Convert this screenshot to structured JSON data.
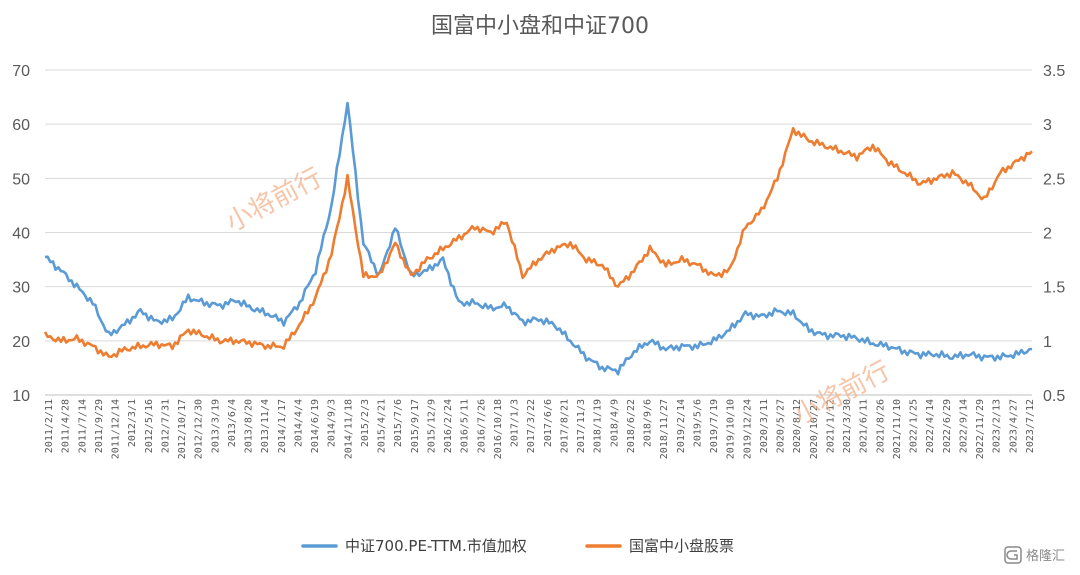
{
  "chart_data": {
    "type": "line",
    "title": "国富中小盘和中证700",
    "xlabel": "",
    "ylabel": "",
    "ylim_left": [
      10,
      70
    ],
    "yticks_left": [
      "10",
      "20",
      "30",
      "40",
      "50",
      "60",
      "70"
    ],
    "ylim_right": [
      0.5,
      3.5
    ],
    "yticks_right": [
      "0.5",
      "1",
      "1.5",
      "2",
      "2.5",
      "3",
      "3.5"
    ],
    "grid": true,
    "legend_position": "bottom",
    "x_tick_labels": [
      "2011/2/11",
      "2011/4/28",
      "2011/7/14",
      "2011/9/29",
      "2011/12/14",
      "2012/3/1",
      "2012/5/16",
      "2012/7/31",
      "2012/10/17",
      "2012/12/30",
      "2013/3/19",
      "2013/6/4",
      "2013/8/20",
      "2013/11/4",
      "2014/1/17",
      "2014/4/4",
      "2014/6/19",
      "2014/9/3",
      "2014/11/18",
      "2015/2/3",
      "2015/4/21",
      "2015/7/6",
      "2015/9/17",
      "2015/12/9",
      "2016/2/24",
      "2016/5/11",
      "2016/7/26",
      "2016/10/18",
      "2017/1/3",
      "2017/3/22",
      "2017/6/6",
      "2017/8/21",
      "2017/11/3",
      "2018/1/19",
      "2018/4/9",
      "2018/6/22",
      "2018/9/6",
      "2018/11/27",
      "2019/2/14",
      "2019/5/6",
      "2019/7/19",
      "2019/10/10",
      "2019/12/24",
      "2020/3/11",
      "2020/5/27",
      "2020/8/12",
      "2020/10/27",
      "2021/1/12",
      "2021/3/30",
      "2021/6/11",
      "2021/8/26",
      "2021/11/10",
      "2022/1/25",
      "2022/4/14",
      "2022/6/29",
      "2022/9/14",
      "2022/11/29",
      "2023/2/13",
      "2023/4/27",
      "2023/7/12"
    ],
    "x": [
      "2011-02",
      "2011-05",
      "2011-08",
      "2011-11",
      "2012-02",
      "2012-05",
      "2012-08",
      "2012-11",
      "2013-02",
      "2013-05",
      "2013-08",
      "2013-11",
      "2014-02",
      "2014-05",
      "2014-08",
      "2014-11",
      "2015-01",
      "2015-03",
      "2015-05",
      "2015-06",
      "2015-07",
      "2015-09",
      "2015-11",
      "2016-01",
      "2016-03",
      "2016-05",
      "2016-08",
      "2016-11",
      "2017-02",
      "2017-05",
      "2017-08",
      "2017-11",
      "2018-02",
      "2018-05",
      "2018-08",
      "2018-11",
      "2019-01",
      "2019-03",
      "2019-05",
      "2019-08",
      "2019-11",
      "2020-02",
      "2020-04",
      "2020-06",
      "2020-08",
      "2020-10",
      "2020-12",
      "2021-02",
      "2021-04",
      "2021-06",
      "2021-08",
      "2021-10",
      "2021-12",
      "2022-02",
      "2022-04",
      "2022-06",
      "2022-08",
      "2022-10",
      "2022-12",
      "2023-02",
      "2023-04",
      "2023-06",
      "2023-08"
    ],
    "series": [
      {
        "name": "中证700.PE-TTM.市值加权",
        "axis": "left",
        "color": "#5b9bd5",
        "values": [
          35.5,
          33.0,
          30.0,
          27.0,
          21.0,
          23.0,
          25.5,
          23.5,
          24.0,
          28.0,
          27.0,
          26.5,
          27.5,
          26.0,
          25.0,
          23.5,
          27.0,
          33.0,
          45.0,
          64.0,
          38.0,
          32.0,
          41.0,
          32.0,
          33.0,
          35.0,
          27.0,
          27.0,
          26.0,
          26.5,
          23.5,
          24.0,
          23.0,
          20.0,
          17.0,
          15.0,
          14.5,
          18.0,
          20.0,
          18.5,
          19.0,
          19.0,
          20.0,
          22.0,
          25.0,
          24.5,
          25.5,
          25.0,
          22.0,
          21.0,
          21.0,
          20.5,
          19.5,
          19.0,
          18.0,
          17.5,
          17.5,
          17.0,
          17.5,
          17.0,
          17.0,
          17.5,
          18.5
        ]
      },
      {
        "name": "国富中小盘股票",
        "axis": "right",
        "color": "#ed7d31",
        "values": [
          1.05,
          1.0,
          1.02,
          0.95,
          0.85,
          0.92,
          0.95,
          0.97,
          0.95,
          1.1,
          1.05,
          1.0,
          1.0,
          0.98,
          0.95,
          0.95,
          1.15,
          1.4,
          1.8,
          2.5,
          1.6,
          1.6,
          1.9,
          1.6,
          1.75,
          1.85,
          1.95,
          2.05,
          2.0,
          2.1,
          1.6,
          1.75,
          1.85,
          1.9,
          1.75,
          1.7,
          1.5,
          1.65,
          1.85,
          1.7,
          1.75,
          1.7,
          1.6,
          1.65,
          2.05,
          2.2,
          2.5,
          2.95,
          2.85,
          2.8,
          2.75,
          2.7,
          2.8,
          2.65,
          2.55,
          2.45,
          2.5,
          2.55,
          2.45,
          2.3,
          2.55,
          2.65,
          2.75
        ]
      }
    ]
  },
  "watermarks": [
    "小将前行",
    "小将前行"
  ],
  "corner_brand": {
    "label": "格隆汇",
    "icon": "g-logo-icon"
  }
}
